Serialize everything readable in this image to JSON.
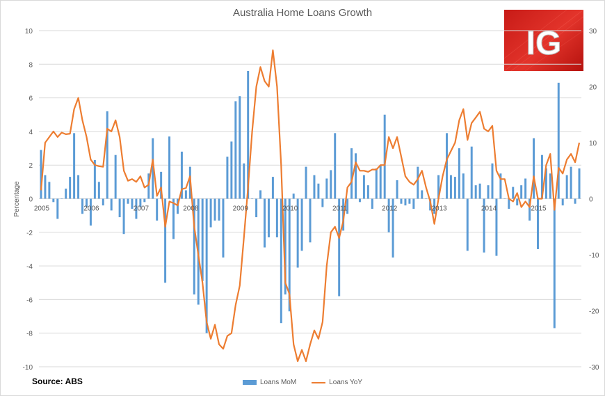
{
  "title": "Australia Home Loans Growth",
  "source": "Source: ABS",
  "logo_text": "IG",
  "colors": {
    "mom": "#5b9bd5",
    "yoy": "#ed7d31",
    "grid": "#d9d9d9",
    "axis": "#595959"
  },
  "chart_data": {
    "type": "bar",
    "title": "Australia Home Loans Growth",
    "ylabel": "Percentage",
    "y2label": "",
    "xlabel": "",
    "ylim": [
      -10,
      10
    ],
    "y2lim": [
      -30,
      30
    ],
    "yticks": [
      -10,
      -8,
      -6,
      -4,
      -2,
      0,
      2,
      4,
      6,
      8,
      10
    ],
    "y2ticks": [
      -30,
      -20,
      -10,
      0,
      10,
      20,
      30
    ],
    "x_start": "2005-01",
    "x_end": "2015-08",
    "year_labels": [
      "2005",
      "2006",
      "2007",
      "2008",
      "2009",
      "2010",
      "2011",
      "2012",
      "2013",
      "2014",
      "2015"
    ],
    "grid": true,
    "legend_position": "bottom",
    "series": [
      {
        "name": "Loans MoM",
        "type": "bar",
        "axis": "left",
        "values": [
          2.9,
          1.4,
          1.0,
          -0.2,
          -1.2,
          0.0,
          0.6,
          1.3,
          3.9,
          1.4,
          -0.9,
          -0.5,
          -1.6,
          2.3,
          1.0,
          -0.4,
          5.2,
          -0.7,
          2.6,
          -1.1,
          -2.1,
          -0.3,
          -0.6,
          -1.2,
          -0.5,
          -0.2,
          1.5,
          3.6,
          -1.3,
          1.6,
          -5.0,
          3.7,
          -2.4,
          -0.9,
          2.8,
          0.5,
          1.9,
          -5.7,
          -6.3,
          -4.9,
          -8.0,
          -1.7,
          -1.3,
          -1.3,
          -3.5,
          2.5,
          3.4,
          5.8,
          6.1,
          2.1,
          7.6,
          0.0,
          -1.1,
          0.5,
          -2.9,
          -2.3,
          1.3,
          -2.3,
          -7.4,
          -5.7,
          -6.7,
          0.3,
          -4.1,
          -3.1,
          1.9,
          -2.6,
          1.4,
          0.9,
          -0.5,
          1.2,
          1.7,
          3.9,
          -5.8,
          -1.9,
          -0.9,
          3.0,
          2.7,
          -0.2,
          1.4,
          0.8,
          -0.6,
          1.8,
          2.0,
          5.0,
          -2.0,
          -3.5,
          1.1,
          -0.3,
          -0.4,
          -0.3,
          -0.6,
          1.9,
          0.5,
          0.0,
          -0.7,
          -0.9,
          1.4,
          0.0,
          3.9,
          1.4,
          1.3,
          3.0,
          1.5,
          -3.1,
          3.1,
          0.8,
          0.9,
          -3.2,
          0.8,
          2.1,
          -3.4,
          1.5,
          0.0,
          -0.6,
          0.7,
          -0.4,
          0.8,
          1.2,
          -1.3,
          3.6,
          -3.0,
          2.6,
          1.8,
          1.5,
          -7.7,
          6.9,
          -0.4,
          1.4,
          1.9,
          -0.3,
          1.8
        ]
      },
      {
        "name": "Loans YoY",
        "type": "line",
        "axis": "right",
        "values": [
          1.5,
          10.0,
          11.0,
          12.0,
          11.0,
          11.8,
          11.5,
          11.6,
          16.0,
          18.0,
          14.0,
          11.0,
          7.0,
          6.0,
          5.8,
          5.7,
          12.5,
          12.0,
          14.0,
          11.0,
          5.0,
          3.2,
          3.5,
          3.0,
          4.0,
          2.0,
          2.5,
          7.0,
          0.5,
          2.0,
          -5.0,
          -0.5,
          -0.8,
          -1.2,
          1.7,
          1.9,
          4.0,
          -5.0,
          -10.0,
          -15.0,
          -22.0,
          -25.0,
          -22.5,
          -26.0,
          -26.8,
          -24.5,
          -24.0,
          -19.0,
          -15.5,
          -7.0,
          2.0,
          12.0,
          20.0,
          23.5,
          21.0,
          20.0,
          26.5,
          20.0,
          6.0,
          -15.0,
          -17.0,
          -26.0,
          -29.0,
          -27.0,
          -29.0,
          -26.0,
          -23.5,
          -25.0,
          -22.0,
          -12.0,
          -6.0,
          -5.0,
          -7.0,
          -4.0,
          2.0,
          3.0,
          6.5,
          5.0,
          5.0,
          4.8,
          5.2,
          5.2,
          6.0,
          6.0,
          11.0,
          9.0,
          11.0,
          7.5,
          4.0,
          3.0,
          2.5,
          3.5,
          5.0,
          2.0,
          -0.5,
          -4.5,
          0.0,
          4.0,
          7.0,
          8.5,
          10.0,
          14.0,
          16.0,
          10.5,
          13.5,
          14.5,
          15.5,
          12.5,
          12.0,
          13.0,
          5.0,
          3.5,
          3.5,
          0.0,
          -0.5,
          1.0,
          -1.5,
          -0.5,
          -1.5,
          4.0,
          0.0,
          0.0,
          6.0,
          8.0,
          -2.0,
          5.5,
          4.5,
          7.0,
          8.0,
          6.5,
          10.0
        ]
      }
    ]
  }
}
